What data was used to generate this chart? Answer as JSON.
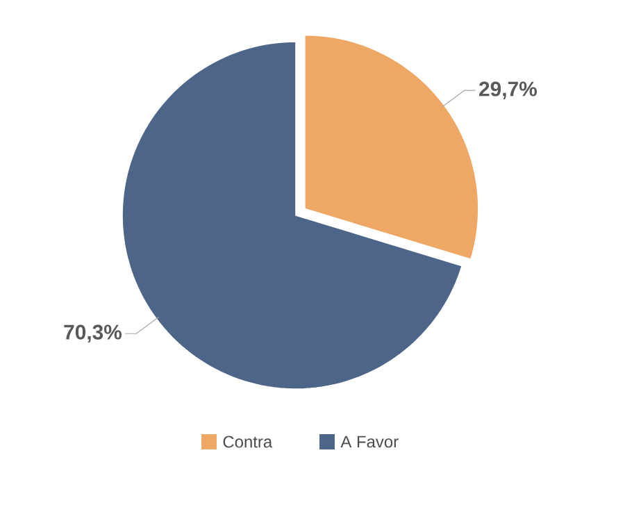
{
  "chart_data": {
    "type": "pie",
    "categories": [
      "Contra",
      "A Favor"
    ],
    "values": [
      29.7,
      70.3
    ],
    "colors": [
      "#eea764",
      "#4d6588"
    ],
    "value_labels": [
      "29,7%",
      "70,3%"
    ],
    "legend": "bottom"
  }
}
